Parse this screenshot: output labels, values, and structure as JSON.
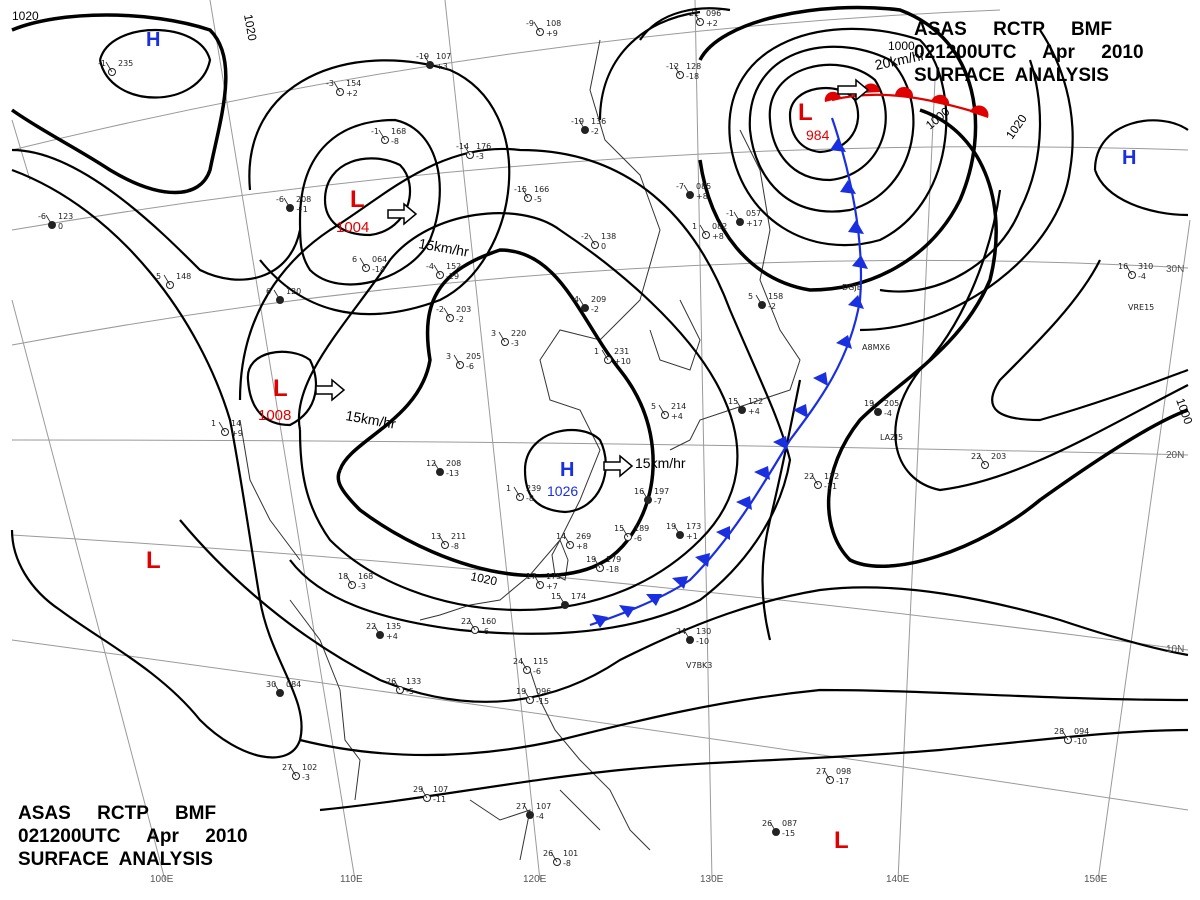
{
  "title": {
    "line1": "ASAS     RCTP     BMF",
    "line2": "021200UTC     Apr     2010",
    "line3": "SURFACE  ANALYSIS"
  },
  "colors": {
    "low": "#e00000",
    "high": "#1a2fe0",
    "cold_front": "#1a2fe0",
    "warm_front": "#e00000",
    "isobar": "#000000",
    "grid": "#888888"
  },
  "pressure_systems": {
    "low_ne": {
      "symbol": "L",
      "value": "984"
    },
    "low_china": {
      "symbol": "L",
      "value": "1004"
    },
    "low_west": {
      "symbol": "L",
      "value": "1008"
    },
    "low_sw": {
      "symbol": "L",
      "value": ""
    },
    "low_se": {
      "symbol": "L",
      "value": ""
    },
    "high_center": {
      "symbol": "H",
      "value": "1026"
    },
    "high_nw": {
      "symbol": "H",
      "value": ""
    },
    "high_ne": {
      "symbol": "H",
      "value": ""
    }
  },
  "motions": {
    "low_ne": "20km/hr",
    "low_china": "15km/hr",
    "low_west": "15km/hr",
    "high_center": "15km/hr"
  },
  "isobar_labels": [
    "1020",
    "1020",
    "1000",
    "1000",
    "1020",
    "1020",
    "1000"
  ],
  "lon_labels": [
    "100E",
    "110E",
    "120E",
    "130E",
    "140E",
    "150E"
  ],
  "lat_labels": [
    "30N",
    "20N",
    "10N"
  ],
  "stations": [
    {
      "id": "s1",
      "t": "-19",
      "p": "107",
      "d": "+3"
    },
    {
      "id": "s2",
      "t": "-9",
      "p": "108",
      "d": "+9"
    },
    {
      "id": "s3",
      "t": "-12",
      "p": "128",
      "d": "-18"
    },
    {
      "id": "s4",
      "t": "-19",
      "p": "136",
      "d": "-2"
    },
    {
      "id": "s5",
      "t": "-14",
      "p": "176",
      "d": "-3"
    },
    {
      "id": "s6",
      "t": "-15",
      "p": "166",
      "d": "-5"
    },
    {
      "id": "s7",
      "t": "-7",
      "p": "085",
      "d": "+8"
    },
    {
      "id": "s8",
      "t": "-4",
      "p": "152",
      "d": "-29"
    },
    {
      "id": "s9",
      "t": "-2",
      "p": "203",
      "d": "-2"
    },
    {
      "id": "s10",
      "t": "-4",
      "p": "209",
      "d": "-2"
    },
    {
      "id": "s11",
      "t": "3",
      "p": "220",
      "d": "-3"
    },
    {
      "id": "s12",
      "t": "3",
      "p": "205",
      "d": "-6"
    },
    {
      "id": "s13",
      "t": "12",
      "p": "208",
      "d": "-13"
    },
    {
      "id": "s14",
      "t": "1",
      "p": "239",
      "d": "-8"
    },
    {
      "id": "s15",
      "t": "13",
      "p": "211",
      "d": "-8"
    },
    {
      "id": "s16",
      "t": "16",
      "p": "197",
      "d": "-7"
    },
    {
      "id": "s17",
      "t": "15",
      "p": "189",
      "d": "-6"
    },
    {
      "id": "s18",
      "t": "19",
      "p": "179",
      "d": "-18"
    },
    {
      "id": "s19",
      "t": "19",
      "p": "173",
      "d": "+1"
    },
    {
      "id": "s20",
      "t": "17",
      "p": "175",
      "d": "+7"
    },
    {
      "id": "s21",
      "t": "18",
      "p": "168",
      "d": "-3"
    },
    {
      "id": "s22",
      "t": "22",
      "p": "135",
      "d": "+4"
    },
    {
      "id": "s23",
      "t": "26",
      "p": "133",
      "d": "-5"
    },
    {
      "id": "s24",
      "t": "22",
      "p": "160",
      "d": "-6"
    },
    {
      "id": "s25",
      "t": "24",
      "p": "130",
      "d": "-10"
    },
    {
      "id": "s26",
      "t": "24",
      "p": "115",
      "d": "-6"
    },
    {
      "id": "s27",
      "t": "19",
      "p": "096",
      "d": "-15"
    },
    {
      "id": "s28",
      "t": "30",
      "p": "084",
      "d": ""
    },
    {
      "id": "s29",
      "t": "27",
      "p": "102",
      "d": "-3"
    },
    {
      "id": "s30",
      "t": "29",
      "p": "107",
      "d": "-11"
    },
    {
      "id": "s31",
      "t": "27",
      "p": "107",
      "d": "-4"
    },
    {
      "id": "s32",
      "t": "26",
      "p": "101",
      "d": "-8"
    },
    {
      "id": "s33",
      "t": "27",
      "p": "098",
      "d": "-17"
    },
    {
      "id": "s34",
      "t": "26",
      "p": "087",
      "d": "-15"
    },
    {
      "id": "s35",
      "t": "28",
      "p": "094",
      "d": "-10"
    },
    {
      "id": "s36",
      "t": "22",
      "p": "203",
      "d": ""
    },
    {
      "id": "s37",
      "t": "19",
      "p": "205",
      "d": "-4"
    },
    {
      "id": "s38",
      "t": "22",
      "p": "172",
      "d": "-11"
    },
    {
      "id": "s39",
      "t": "16",
      "p": "310",
      "d": "-4"
    },
    {
      "id": "s40",
      "t": "6",
      "p": "120",
      "d": ""
    },
    {
      "id": "s41",
      "t": "5",
      "p": "148",
      "d": ""
    },
    {
      "id": "s42",
      "t": "-1",
      "p": "235",
      "d": ""
    },
    {
      "id": "s43",
      "t": "-6",
      "p": "123",
      "d": "0"
    },
    {
      "id": "s44",
      "t": "-3",
      "p": "154",
      "d": "+2"
    },
    {
      "id": "s45",
      "t": "-1",
      "p": "168",
      "d": "-8"
    },
    {
      "id": "s46",
      "t": "-6",
      "p": "208",
      "d": "+1"
    },
    {
      "id": "s47",
      "t": "6",
      "p": "064",
      "d": "-14"
    },
    {
      "id": "s48",
      "t": "-21",
      "p": "096",
      "d": "+2"
    },
    {
      "id": "s49",
      "t": "-1",
      "p": "057",
      "d": "+17"
    },
    {
      "id": "s50",
      "t": "-2",
      "p": "138",
      "d": "0"
    },
    {
      "id": "s51",
      "t": "1",
      "p": "082",
      "d": "+8"
    },
    {
      "id": "s52",
      "t": "5",
      "p": "158",
      "d": "-2"
    },
    {
      "id": "s53",
      "t": "1",
      "p": "231",
      "d": "+10"
    },
    {
      "id": "s54",
      "t": "5",
      "p": "214",
      "d": "+4"
    },
    {
      "id": "s55",
      "t": "15",
      "p": "122",
      "d": "+4"
    },
    {
      "id": "s56",
      "t": "14",
      "p": "269",
      "d": "+8"
    },
    {
      "id": "s57",
      "t": "1",
      "p": "14",
      "d": "+9"
    },
    {
      "id": "s58",
      "t": "15",
      "p": "174",
      "d": ""
    }
  ],
  "ship_labels": [
    "DGJE",
    "A8MX6",
    "LAZI5",
    "VRE15",
    "V7BK3"
  ]
}
